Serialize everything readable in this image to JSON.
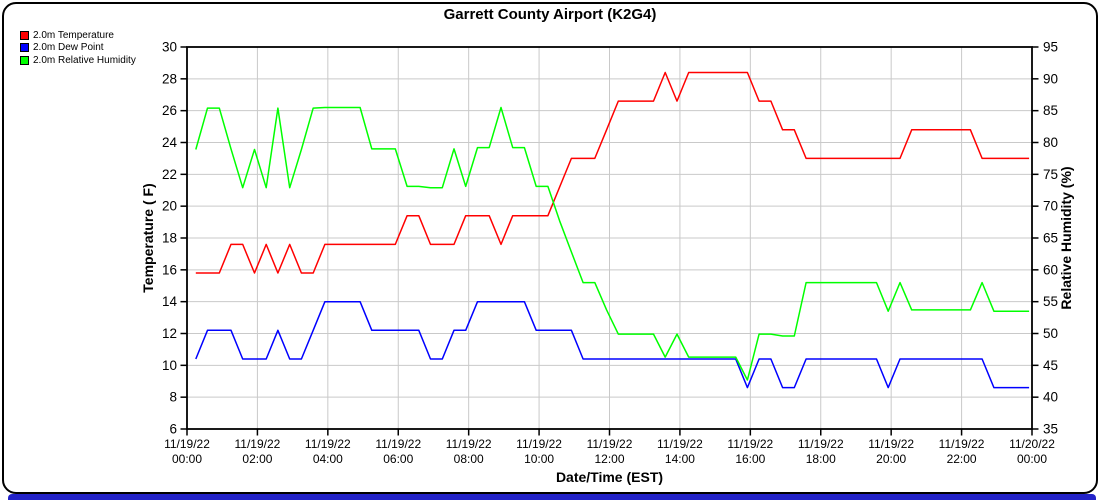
{
  "title": "Garrett County Airport (K2G4)",
  "colors": {
    "temperature": "#ff0000",
    "dew_point": "#0000ff",
    "humidity": "#00ff00",
    "grid": "#c9c9c9",
    "axis": "#000000",
    "bottom_bar": "#2222c8"
  },
  "legend": [
    {
      "label": "2.0m Temperature",
      "color": "#ff0000"
    },
    {
      "label": "2.0m Dew Point",
      "color": "#0000ff"
    },
    {
      "label": "2.0m Relative Humidity",
      "color": "#00ff00"
    }
  ],
  "chart_data": {
    "type": "line",
    "title": "Garrett County Airport (K2G4)",
    "xlabel": "Date/Time (EST)",
    "ylabel_left": "Temperature ( F)",
    "ylabel_right": "Relative Humidity (%)",
    "x_range_hours": [
      0,
      24
    ],
    "ylim_left": [
      6,
      30
    ],
    "ylim_right": [
      35,
      95
    ],
    "grid": true,
    "legend_position": "top-left",
    "left_ticks": [
      30,
      28,
      26,
      24,
      22,
      20,
      18,
      16,
      14,
      12,
      10,
      8,
      6
    ],
    "right_ticks": [
      95,
      90,
      85,
      80,
      75,
      70,
      65,
      60,
      55,
      50,
      45,
      40,
      35
    ],
    "x_ticks": [
      {
        "date": "11/19/22",
        "time": "00:00"
      },
      {
        "date": "11/19/22",
        "time": "02:00"
      },
      {
        "date": "11/19/22",
        "time": "04:00"
      },
      {
        "date": "11/19/22",
        "time": "06:00"
      },
      {
        "date": "11/19/22",
        "time": "08:00"
      },
      {
        "date": "11/19/22",
        "time": "10:00"
      },
      {
        "date": "11/19/22",
        "time": "12:00"
      },
      {
        "date": "11/19/22",
        "time": "14:00"
      },
      {
        "date": "11/19/22",
        "time": "16:00"
      },
      {
        "date": "11/19/22",
        "time": "18:00"
      },
      {
        "date": "11/19/22",
        "time": "20:00"
      },
      {
        "date": "11/19/22",
        "time": "22:00"
      },
      {
        "date": "11/20/22",
        "time": "00:00"
      }
    ],
    "x_hours": [
      0.25,
      0.583,
      0.917,
      1.25,
      1.583,
      1.917,
      2.25,
      2.583,
      2.917,
      3.25,
      3.583,
      3.917,
      4.25,
      4.583,
      4.917,
      5.25,
      5.583,
      5.917,
      6.25,
      6.583,
      6.917,
      7.25,
      7.583,
      7.917,
      8.25,
      8.583,
      8.917,
      9.25,
      9.583,
      9.917,
      10.25,
      10.583,
      10.917,
      11.25,
      11.583,
      11.917,
      12.25,
      12.583,
      12.917,
      13.25,
      13.583,
      13.917,
      14.25,
      14.583,
      14.917,
      15.25,
      15.583,
      15.917,
      16.25,
      16.583,
      16.917,
      17.25,
      17.583,
      17.917,
      18.25,
      18.583,
      18.917,
      19.25,
      19.583,
      19.917,
      20.25,
      20.583,
      20.917,
      21.25,
      21.583,
      21.917,
      22.25,
      22.583,
      22.917,
      23.25,
      23.583,
      23.917
    ],
    "series": [
      {
        "name": "2.0m Temperature",
        "axis": "left",
        "color": "#ff0000",
        "units": "F",
        "values": [
          15.8,
          15.8,
          15.8,
          17.6,
          17.6,
          15.8,
          17.6,
          15.8,
          17.6,
          15.8,
          15.8,
          17.6,
          17.6,
          17.6,
          17.6,
          17.6,
          17.6,
          17.6,
          19.4,
          19.4,
          17.6,
          17.6,
          17.6,
          19.4,
          19.4,
          19.4,
          17.6,
          19.4,
          19.4,
          19.4,
          19.4,
          21.2,
          23.0,
          23.0,
          23.0,
          24.8,
          26.6,
          26.6,
          26.6,
          26.6,
          28.4,
          26.6,
          28.4,
          28.4,
          28.4,
          28.4,
          28.4,
          28.4,
          26.6,
          26.6,
          24.8,
          24.8,
          23.0,
          23.0,
          23.0,
          23.0,
          23.0,
          23.0,
          23.0,
          23.0,
          23.0,
          24.8,
          24.8,
          24.8,
          24.8,
          24.8,
          24.8,
          23.0,
          23.0,
          23.0,
          23.0,
          23.0
        ]
      },
      {
        "name": "2.0m Dew Point",
        "axis": "left",
        "color": "#0000ff",
        "units": "F",
        "values": [
          10.4,
          12.2,
          12.2,
          12.2,
          10.4,
          10.4,
          10.4,
          12.2,
          10.4,
          10.4,
          12.2,
          14.0,
          14.0,
          14.0,
          14.0,
          12.2,
          12.2,
          12.2,
          12.2,
          12.2,
          10.4,
          10.4,
          12.2,
          12.2,
          14.0,
          14.0,
          14.0,
          14.0,
          14.0,
          12.2,
          12.2,
          12.2,
          12.2,
          10.4,
          10.4,
          10.4,
          10.4,
          10.4,
          10.4,
          10.4,
          10.4,
          10.4,
          10.4,
          10.4,
          10.4,
          10.4,
          10.4,
          8.6,
          10.4,
          10.4,
          8.6,
          8.6,
          10.4,
          10.4,
          10.4,
          10.4,
          10.4,
          10.4,
          10.4,
          8.6,
          10.4,
          10.4,
          10.4,
          10.4,
          10.4,
          10.4,
          10.4,
          10.4,
          8.6,
          8.6,
          8.6,
          8.6
        ]
      },
      {
        "name": "2.0m Relative Humidity",
        "axis": "right",
        "color": "#00ff00",
        "units": "%",
        "values": [
          78.9,
          85.4,
          85.4,
          79.0,
          72.9,
          78.9,
          72.9,
          85.4,
          72.9,
          78.9,
          85.4,
          85.5,
          85.5,
          85.5,
          85.5,
          79.0,
          79.0,
          79.0,
          73.1,
          73.1,
          72.9,
          72.9,
          79.0,
          73.1,
          79.2,
          79.2,
          85.5,
          79.2,
          79.2,
          73.1,
          73.1,
          67.7,
          62.8,
          58.0,
          58.0,
          53.7,
          49.9,
          49.9,
          49.9,
          49.9,
          46.3,
          49.9,
          46.3,
          46.3,
          46.3,
          46.3,
          46.3,
          42.7,
          49.9,
          49.9,
          49.6,
          49.6,
          58.0,
          58.0,
          58.0,
          58.0,
          58.0,
          58.0,
          58.0,
          53.5,
          58.0,
          53.7,
          53.7,
          53.7,
          53.7,
          53.7,
          53.7,
          58.0,
          53.5,
          53.5,
          53.5,
          53.5
        ]
      }
    ]
  }
}
